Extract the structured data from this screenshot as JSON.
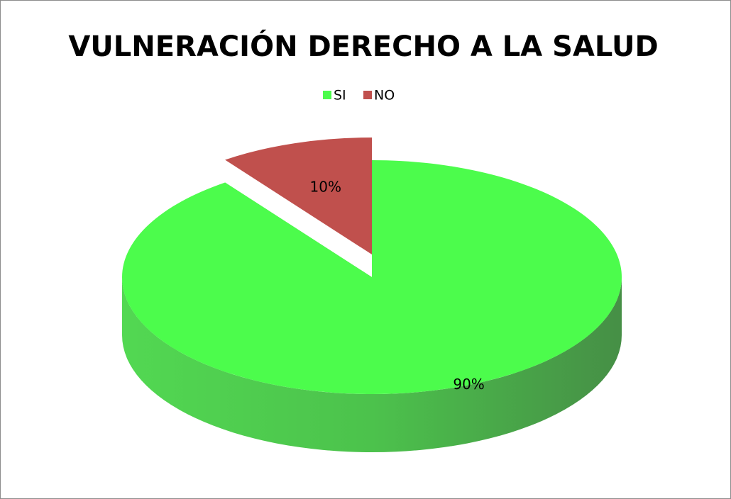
{
  "chart_data": {
    "type": "pie3d",
    "title": "VULNERACIÓN DERECHO A LA SALUD",
    "categories": [
      "SI",
      "NO"
    ],
    "values": [
      90,
      10
    ],
    "value_labels": [
      "90%",
      "10%"
    ],
    "colors": [
      "#4cfc4c",
      "#c0504d"
    ],
    "legend": "top"
  }
}
